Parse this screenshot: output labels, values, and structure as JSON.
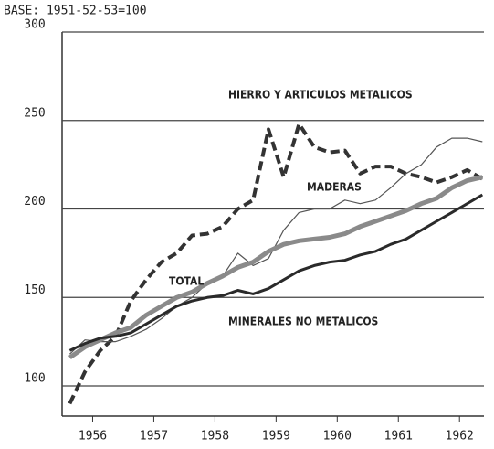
{
  "chart_data": {
    "type": "line",
    "subtitle": "BASE: 1951-52-53=100",
    "x": [
      1956.125,
      1956.375,
      1956.625,
      1956.875,
      1957.125,
      1957.375,
      1957.625,
      1957.875,
      1958.125,
      1958.375,
      1958.625,
      1958.875,
      1959.125,
      1959.375,
      1959.625,
      1959.875,
      1960.125,
      1960.375,
      1960.625,
      1960.875,
      1961.125,
      1961.375,
      1961.625,
      1961.875,
      1962.125,
      1962.375,
      1962.625,
      1962.875
    ],
    "series": [
      {
        "name": "HIERRO Y ARTICULOS METALICOS",
        "color": "#333333",
        "dashed": true,
        "values": [
          90,
          108,
          120,
          128,
          148,
          160,
          170,
          175,
          185,
          186,
          190,
          200,
          205,
          245,
          218,
          248,
          235,
          232,
          233,
          220,
          224,
          224,
          220,
          218,
          215,
          218,
          222,
          217
        ]
      },
      {
        "name": "MADERAS",
        "color": "#555555",
        "dashed": false,
        "values": [
          118,
          126,
          125,
          125,
          128,
          132,
          138,
          145,
          150,
          158,
          162,
          175,
          168,
          172,
          188,
          198,
          200,
          200,
          205,
          203,
          205,
          212,
          220,
          225,
          235,
          240,
          240,
          238
        ]
      },
      {
        "name": "TOTAL",
        "color": "#8a8a8a",
        "dashed": false,
        "values": [
          116,
          122,
          126,
          130,
          133,
          140,
          145,
          150,
          153,
          158,
          162,
          167,
          170,
          176,
          180,
          182,
          183,
          184,
          186,
          190,
          193,
          196,
          199,
          203,
          206,
          212,
          216,
          218
        ]
      },
      {
        "name": "MINERALES NO METALICOS",
        "color": "#2a2a2a",
        "dashed": false,
        "values": [
          120,
          124,
          127,
          128,
          130,
          135,
          140,
          145,
          148,
          150,
          151,
          154,
          152,
          155,
          160,
          165,
          168,
          170,
          171,
          174,
          176,
          180,
          183,
          188,
          193,
          198,
          203,
          208
        ]
      }
    ],
    "xlim": [
      1956,
      1962.9
    ],
    "xticks": [
      {
        "value": 1956.5,
        "label": "1956"
      },
      {
        "value": 1957.5,
        "label": "1957"
      },
      {
        "value": 1958.5,
        "label": "1958"
      },
      {
        "value": 1959.5,
        "label": "1959"
      },
      {
        "value": 1960.5,
        "label": "1960"
      },
      {
        "value": 1961.5,
        "label": "1961"
      },
      {
        "value": 1962.5,
        "label": "1962"
      }
    ],
    "ylim": [
      100,
      300
    ],
    "yticks": [
      100,
      150,
      200,
      250,
      300
    ],
    "grid": true
  }
}
